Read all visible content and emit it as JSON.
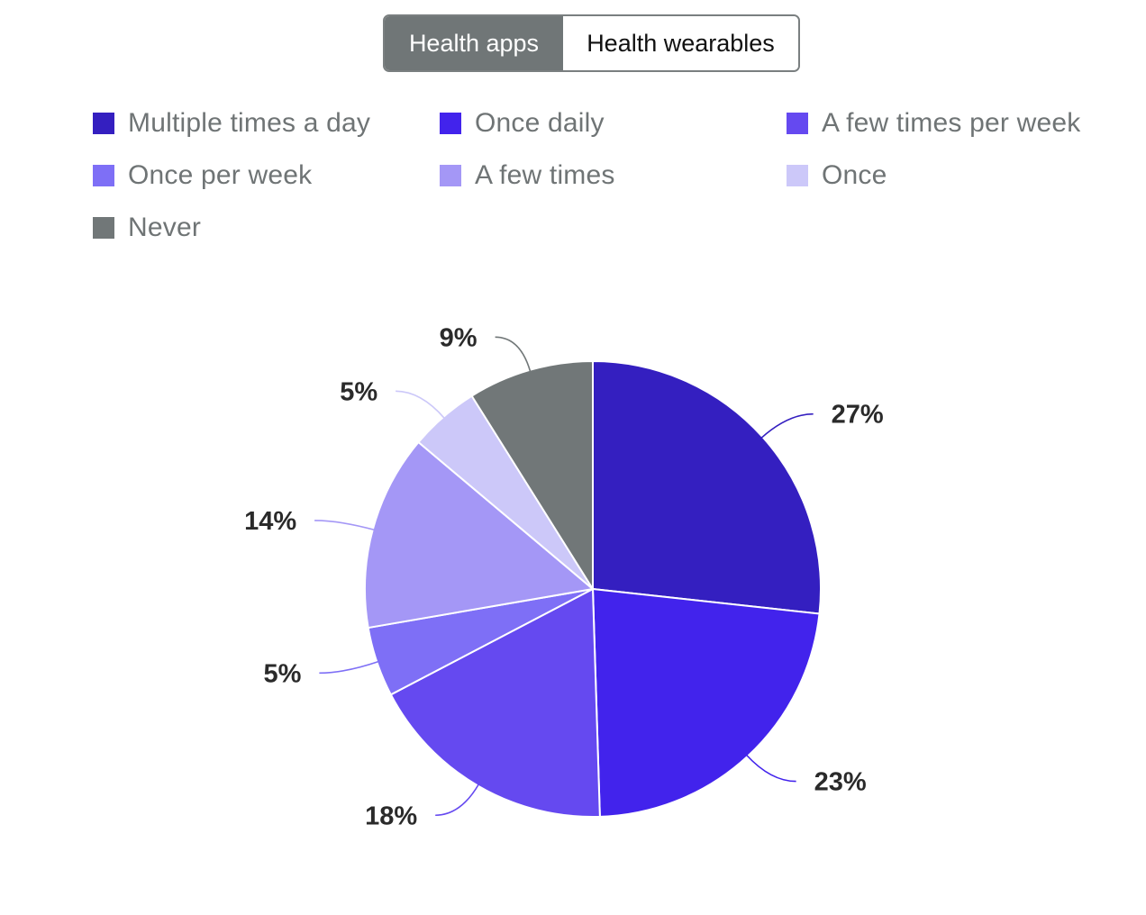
{
  "toggle": {
    "options": [
      {
        "label": "Health apps",
        "active": true
      },
      {
        "label": "Health wearables",
        "active": false
      }
    ]
  },
  "legend": {
    "items": [
      {
        "label": "Multiple times a day",
        "color": "#341fc0"
      },
      {
        "label": "Once daily",
        "color": "#4223ec"
      },
      {
        "label": "A few times per week",
        "color": "#6549f0"
      },
      {
        "label": "Once per week",
        "color": "#7e6ff6"
      },
      {
        "label": "A few times",
        "color": "#a497f6"
      },
      {
        "label": "Once",
        "color": "#ccc8f9"
      },
      {
        "label": "Never",
        "color": "#717778"
      }
    ]
  },
  "chart_data": {
    "type": "pie",
    "categories": [
      "Multiple times a day",
      "Once daily",
      "A few times per week",
      "Once per week",
      "A few times",
      "Once",
      "Never"
    ],
    "values": [
      27,
      23,
      18,
      5,
      14,
      5,
      9
    ],
    "data_labels": [
      "27%",
      "23%",
      "18%",
      "5%",
      "14%",
      "5%",
      "9%"
    ],
    "colors": [
      "#341fc0",
      "#4223ec",
      "#6549f0",
      "#7e6ff6",
      "#a497f6",
      "#ccc8f9",
      "#717778"
    ],
    "legend_position": "top",
    "start_angle_deg": 0,
    "direction": "clockwise"
  }
}
